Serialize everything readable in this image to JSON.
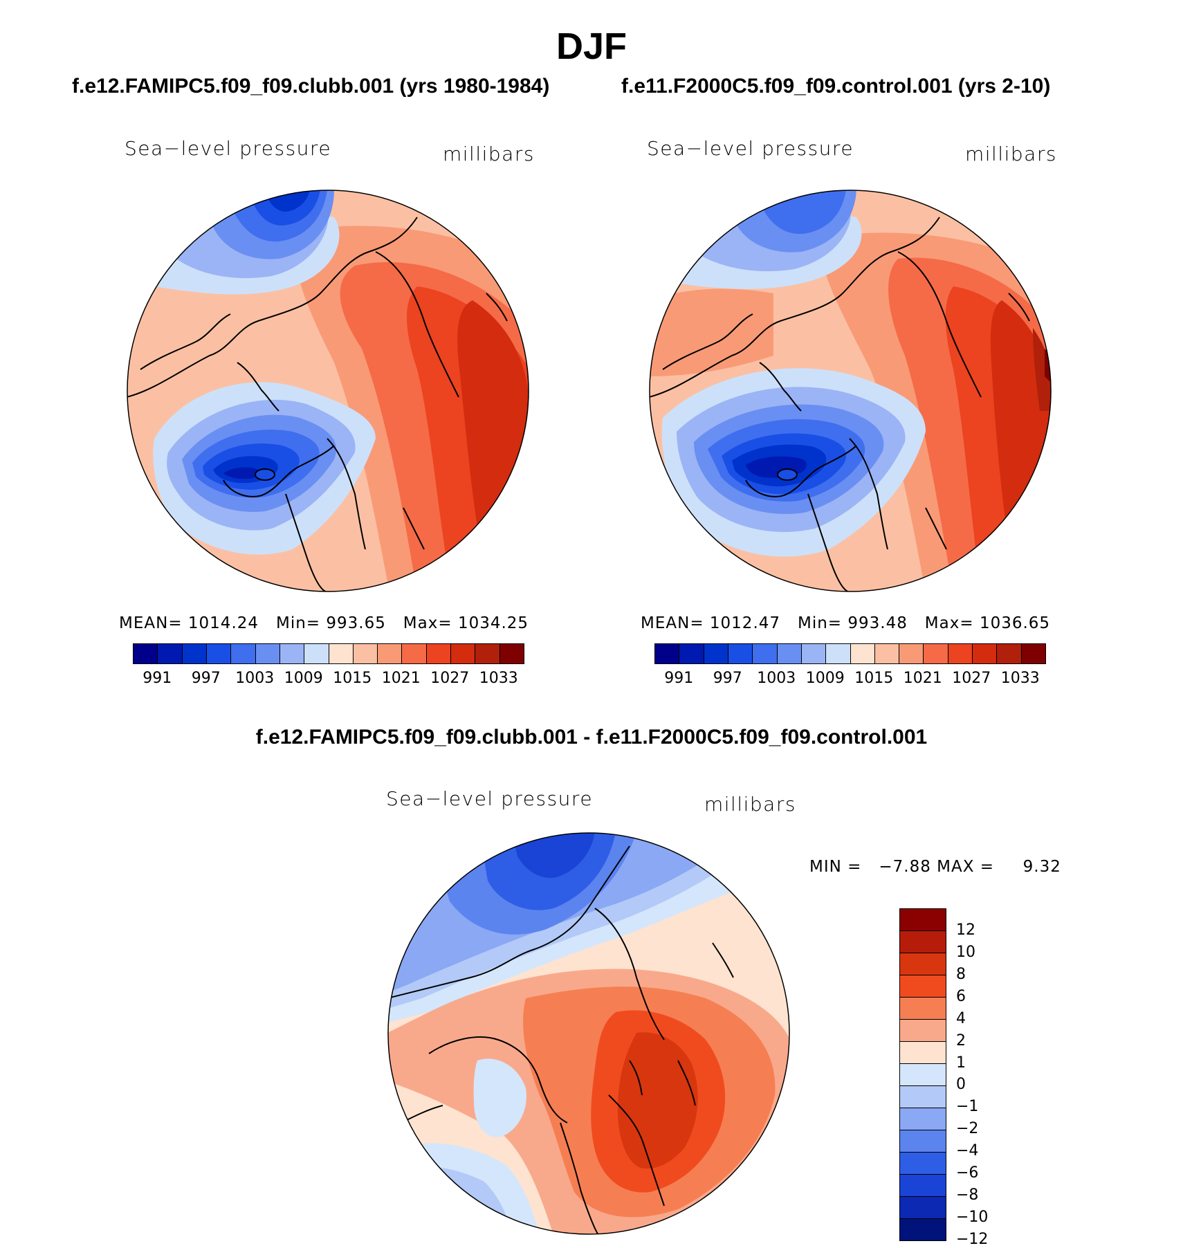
{
  "title": "DJF",
  "panels": [
    {
      "case_title": "f.e12.FAMIPC5.f09_f09.clubb.001 (yrs 1980-1984)",
      "variable": "Sea−level pressure",
      "units": "millibars",
      "stats": {
        "mean_label": "MEAN=",
        "mean": "1014.24",
        "min_label": "Min=",
        "min": "993.65",
        "max_label": "Max=",
        "max": "1034.25"
      }
    },
    {
      "case_title": "f.e11.F2000C5.f09_f09.control.001 (yrs 2-10)",
      "variable": "Sea−level pressure",
      "units": "millibars",
      "stats": {
        "mean_label": "MEAN=",
        "mean": "1012.47",
        "min_label": "Min=",
        "min": "993.48",
        "max_label": "Max=",
        "max": "1036.65"
      }
    },
    {
      "case_title": "f.e12.FAMIPC5.f09_f09.clubb.001 - f.e11.F2000C5.f09_f09.control.001",
      "variable": "Sea−level pressure",
      "units": "millibars",
      "stats": {
        "min_label": "MIN =",
        "min": "−7.88",
        "max_label": "MAX =",
        "max": "9.32"
      }
    }
  ],
  "colorbar_abs": {
    "colors": [
      "#00008b",
      "#0019b0",
      "#0033cc",
      "#1a4fe6",
      "#3f6fee",
      "#6a8ff2",
      "#9bb4f5",
      "#cde0fa",
      "#fde3d0",
      "#fbc0a3",
      "#f99a76",
      "#f56b47",
      "#ec4320",
      "#d32c0f",
      "#b0200a",
      "#7f0000"
    ],
    "labels": [
      "991",
      "997",
      "1003",
      "1009",
      "1015",
      "1021",
      "1027",
      "1033"
    ]
  },
  "colorbar_diff": {
    "colors_top_to_bottom": [
      "#8b0000",
      "#b51d0a",
      "#d8360e",
      "#f04b1f",
      "#f57f53",
      "#f9a98b",
      "#fde3d0",
      "#d4e6fb",
      "#b3c9f7",
      "#8aa8f4",
      "#5c84ef",
      "#2e5ee6",
      "#1a44d6",
      "#0b29b3",
      "#00137a"
    ],
    "labels": [
      "12",
      "10",
      "8",
      "6",
      "4",
      "2",
      "1",
      "0",
      "−1",
      "−2",
      "−4",
      "−6",
      "−8",
      "−10",
      "−12"
    ]
  },
  "colors": {
    "land_outline": "#000000",
    "map_border": "#000000"
  }
}
